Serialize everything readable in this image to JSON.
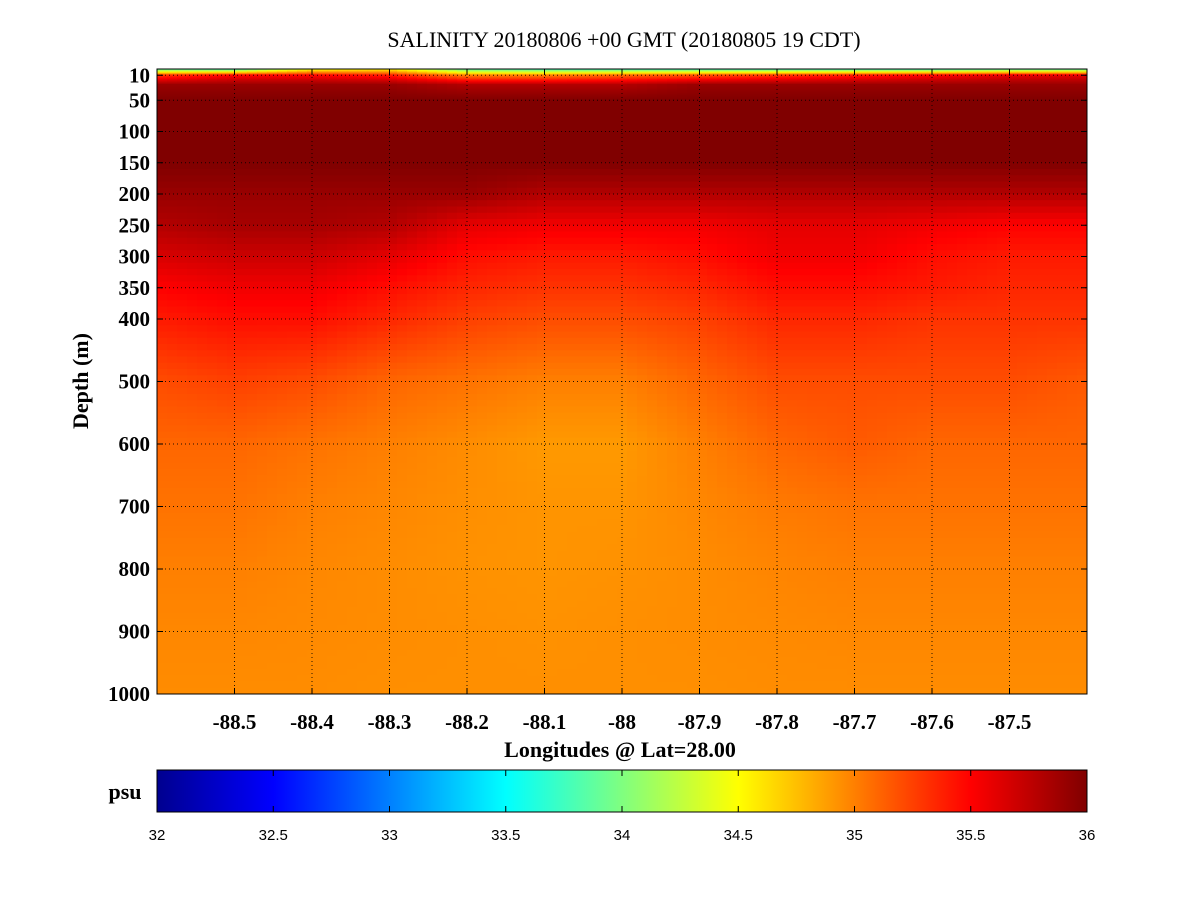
{
  "chart_data": {
    "type": "heatmap",
    "title": "SALINITY 20180806 +00 GMT (20180805 19 CDT)",
    "xlabel": "Longitudes @ Lat=28.00",
    "ylabel": "Depth (m)",
    "xlim": [
      -88.6,
      -87.4
    ],
    "ylim": [
      1000,
      0
    ],
    "x_ticks": [
      -88.5,
      -88.4,
      -88.3,
      -88.2,
      -88.1,
      -88,
      -87.9,
      -87.8,
      -87.7,
      -87.6,
      -87.5
    ],
    "x_tick_labels": [
      "-88.5",
      "-88.4",
      "-88.3",
      "-88.2",
      "-88.1",
      "-88",
      "-87.9",
      "-87.8",
      "-87.7",
      "-87.6",
      "-87.5"
    ],
    "y_ticks": [
      10,
      50,
      100,
      150,
      200,
      250,
      300,
      350,
      400,
      500,
      600,
      700,
      800,
      900,
      1000
    ],
    "y_tick_labels": [
      "10",
      "50",
      "100",
      "150",
      "200",
      "250",
      "300",
      "350",
      "400",
      "500",
      "600",
      "700",
      "800",
      "900",
      "1000"
    ],
    "grid": true,
    "colorbar": {
      "label": "psu",
      "range": [
        32,
        36
      ],
      "ticks": [
        32,
        32.5,
        33,
        33.5,
        34,
        34.5,
        35,
        35.5,
        36
      ],
      "tick_labels": [
        "32",
        "32.5",
        "33",
        "33.5",
        "34",
        "34.5",
        "35",
        "35.5",
        "36"
      ],
      "colormap": "jet"
    },
    "field": {
      "x": [
        -88.6,
        -88.5,
        -88.4,
        -88.3,
        -88.2,
        -88.1,
        -88.0,
        -87.9,
        -87.8,
        -87.7,
        -87.6,
        -87.5,
        -87.4
      ],
      "depth": [
        0,
        10,
        25,
        50,
        100,
        150,
        200,
        250,
        300,
        350,
        400,
        500,
        600,
        700,
        800,
        900,
        1000
      ],
      "values": [
        [
          33.8,
          33.7,
          34.4,
          34.5,
          33.8,
          33.7,
          33.7,
          33.7,
          33.7,
          33.7,
          33.7,
          33.8,
          33.8
        ],
        [
          35.3,
          35.5,
          35.5,
          35.4,
          35.0,
          35.0,
          35.1,
          35.2,
          35.3,
          35.4,
          35.5,
          35.6,
          35.6
        ],
        [
          35.9,
          35.9,
          35.9,
          35.9,
          35.8,
          35.8,
          35.8,
          35.9,
          35.9,
          35.9,
          35.9,
          35.9,
          35.9
        ],
        [
          36.0,
          36.0,
          36.0,
          36.0,
          36.0,
          36.0,
          36.0,
          36.0,
          36.0,
          36.0,
          36.0,
          36.0,
          36.0
        ],
        [
          36.0,
          36.0,
          36.0,
          36.0,
          36.0,
          36.0,
          36.0,
          36.0,
          36.0,
          36.0,
          36.0,
          36.0,
          36.0
        ],
        [
          36.0,
          36.0,
          36.0,
          36.0,
          36.0,
          36.0,
          36.0,
          36.0,
          36.0,
          36.0,
          36.0,
          36.0,
          36.0
        ],
        [
          35.9,
          35.9,
          35.9,
          35.9,
          35.9,
          35.8,
          35.8,
          35.8,
          35.8,
          35.8,
          35.8,
          35.8,
          35.8
        ],
        [
          35.8,
          35.85,
          35.85,
          35.8,
          35.6,
          35.55,
          35.55,
          35.55,
          35.6,
          35.6,
          35.55,
          35.5,
          35.5
        ],
        [
          35.65,
          35.7,
          35.7,
          35.6,
          35.45,
          35.4,
          35.4,
          35.45,
          35.55,
          35.55,
          35.45,
          35.4,
          35.4
        ],
        [
          35.5,
          35.55,
          35.55,
          35.45,
          35.35,
          35.3,
          35.3,
          35.35,
          35.45,
          35.45,
          35.4,
          35.35,
          35.35
        ],
        [
          35.4,
          35.45,
          35.45,
          35.35,
          35.25,
          35.2,
          35.2,
          35.25,
          35.35,
          35.35,
          35.3,
          35.3,
          35.3
        ],
        [
          35.2,
          35.25,
          35.2,
          35.1,
          35.05,
          35.0,
          35.0,
          35.1,
          35.2,
          35.2,
          35.2,
          35.2,
          35.15
        ],
        [
          35.1,
          35.1,
          35.05,
          35.0,
          34.95,
          34.9,
          34.9,
          35.0,
          35.1,
          35.15,
          35.1,
          35.1,
          35.1
        ],
        [
          35.05,
          35.05,
          35.0,
          34.97,
          34.94,
          34.92,
          34.92,
          34.97,
          35.02,
          35.05,
          35.05,
          35.05,
          35.05
        ],
        [
          35.0,
          35.0,
          34.97,
          34.95,
          34.93,
          34.92,
          34.93,
          34.95,
          34.98,
          35.0,
          35.0,
          35.0,
          35.0
        ],
        [
          34.97,
          34.97,
          34.96,
          34.95,
          34.94,
          34.93,
          34.94,
          34.95,
          34.96,
          34.97,
          34.97,
          34.97,
          34.97
        ],
        [
          34.95,
          34.95,
          34.95,
          34.94,
          34.94,
          34.94,
          34.94,
          34.94,
          34.95,
          34.95,
          34.95,
          34.95,
          34.95
        ]
      ]
    }
  }
}
